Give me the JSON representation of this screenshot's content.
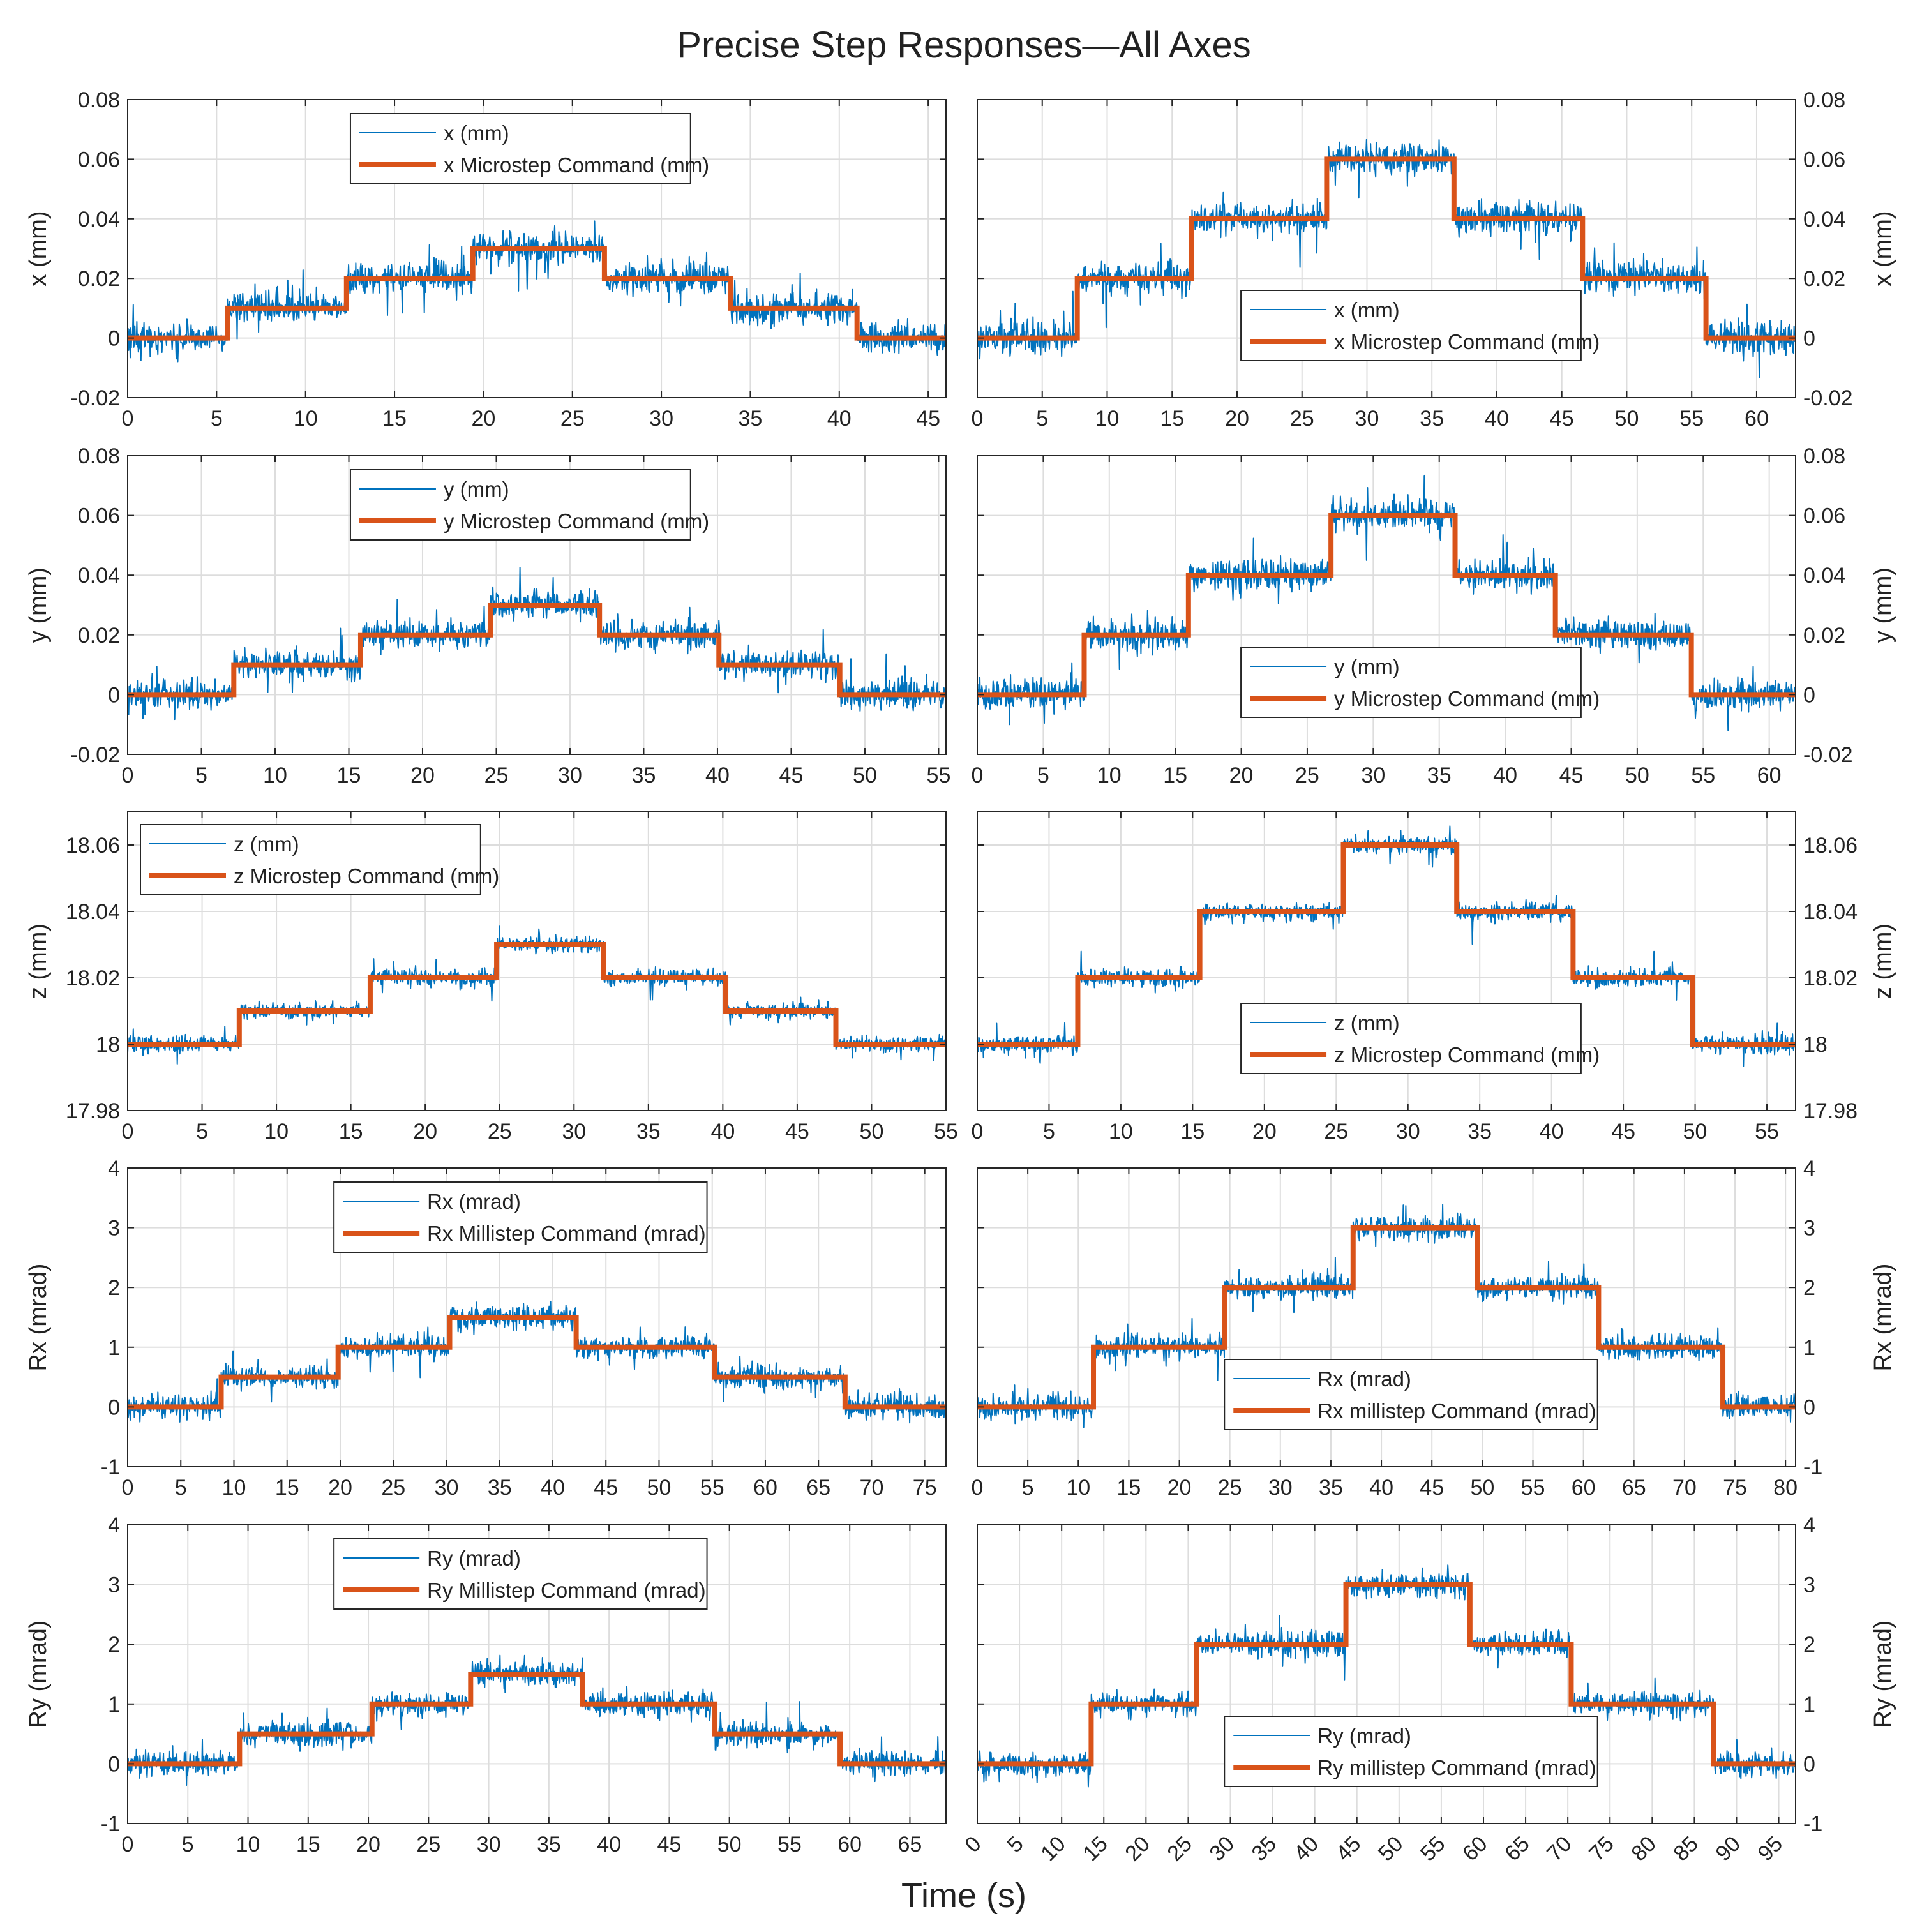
{
  "title": "Precise Step Responses—All Axes",
  "xlabel": "Time (s)",
  "colors": {
    "measured": "#0072BD",
    "command": "#D95319",
    "grid": "#DDDDDD",
    "axis": "#262626"
  },
  "chart_data": [
    {
      "id": "x-left",
      "type": "line",
      "row": 0,
      "col": 0,
      "ylabel": "x (mm)",
      "y_ticks": [
        "-0.02",
        "0",
        "0.02",
        "0.04",
        "0.06",
        "0.08"
      ],
      "ylim": [
        -0.02,
        0.08
      ],
      "xlim": [
        0,
        46
      ],
      "x_ticks": [
        0,
        5,
        10,
        15,
        20,
        25,
        30,
        35,
        40,
        45
      ],
      "grid": true,
      "legend": "top-center",
      "noise": 0.0045,
      "series": [
        {
          "name": "x (mm)",
          "style": "thin",
          "steps": [
            [
              0,
              0
            ],
            [
              5.6,
              0.01
            ],
            [
              12.3,
              0.02
            ],
            [
              19.4,
              0.03
            ],
            [
              26.8,
              0.02
            ],
            [
              33.9,
              0.01
            ],
            [
              41,
              0
            ]
          ],
          "end": 46
        },
        {
          "name": "x Microstep Command (mm)",
          "style": "thick",
          "steps": [
            [
              0,
              0
            ],
            [
              5.6,
              0.01
            ],
            [
              12.3,
              0.02
            ],
            [
              19.4,
              0.03
            ],
            [
              26.8,
              0.02
            ],
            [
              33.9,
              0.01
            ],
            [
              41,
              0
            ]
          ],
          "end": 46
        }
      ]
    },
    {
      "id": "x-right",
      "type": "line",
      "row": 0,
      "col": 1,
      "ylabel": "x (mm)",
      "y_ticks": [
        "-0.02",
        "0",
        "0.02",
        "0.04",
        "0.06",
        "0.08"
      ],
      "ylim": [
        -0.02,
        0.08
      ],
      "xlim": [
        0,
        63
      ],
      "x_ticks": [
        0,
        5,
        10,
        15,
        20,
        25,
        30,
        35,
        40,
        45,
        50,
        55,
        60
      ],
      "grid": true,
      "legend": "bottom-center",
      "noise": 0.005,
      "series": [
        {
          "name": "x (mm)",
          "style": "thin",
          "steps": [
            [
              0,
              0
            ],
            [
              7.7,
              0.02
            ],
            [
              16.5,
              0.04
            ],
            [
              26.9,
              0.06
            ],
            [
              36.7,
              0.04
            ],
            [
              46.6,
              0.02
            ],
            [
              56.1,
              0
            ]
          ],
          "end": 63
        },
        {
          "name": "x Microstep Command (mm)",
          "style": "thick",
          "steps": [
            [
              0,
              0
            ],
            [
              7.7,
              0.02
            ],
            [
              16.5,
              0.04
            ],
            [
              26.9,
              0.06
            ],
            [
              36.7,
              0.04
            ],
            [
              46.6,
              0.02
            ],
            [
              56.1,
              0
            ]
          ],
          "end": 63
        }
      ]
    },
    {
      "id": "y-left",
      "type": "line",
      "row": 1,
      "col": 0,
      "ylabel": "y (mm)",
      "y_ticks": [
        "-0.02",
        "0",
        "0.02",
        "0.04",
        "0.06",
        "0.08"
      ],
      "ylim": [
        -0.02,
        0.08
      ],
      "xlim": [
        0,
        55.5
      ],
      "x_ticks": [
        0,
        5,
        10,
        15,
        20,
        25,
        30,
        35,
        40,
        45,
        50,
        55
      ],
      "grid": true,
      "legend": "top-center",
      "noise": 0.0042,
      "series": [
        {
          "name": "y (mm)",
          "style": "thin",
          "steps": [
            [
              0,
              0
            ],
            [
              7.2,
              0.01
            ],
            [
              15.8,
              0.02
            ],
            [
              24.6,
              0.03
            ],
            [
              32,
              0.02
            ],
            [
              40.1,
              0.01
            ],
            [
              48.3,
              0
            ]
          ],
          "end": 55.5
        },
        {
          "name": "y Microstep Command (mm)",
          "style": "thick",
          "steps": [
            [
              0,
              0
            ],
            [
              7.2,
              0.01
            ],
            [
              15.8,
              0.02
            ],
            [
              24.6,
              0.03
            ],
            [
              32,
              0.02
            ],
            [
              40.1,
              0.01
            ],
            [
              48.3,
              0
            ]
          ],
          "end": 55.5
        }
      ]
    },
    {
      "id": "y-right",
      "type": "line",
      "row": 1,
      "col": 1,
      "ylabel": "y (mm)",
      "y_ticks": [
        "-0.02",
        "0",
        "0.02",
        "0.04",
        "0.06",
        "0.08"
      ],
      "ylim": [
        -0.02,
        0.08
      ],
      "xlim": [
        0,
        62
      ],
      "x_ticks": [
        0,
        5,
        10,
        15,
        20,
        25,
        30,
        35,
        40,
        45,
        50,
        55,
        60
      ],
      "grid": true,
      "legend": "bottom-center",
      "noise": 0.0045,
      "series": [
        {
          "name": "y (mm)",
          "style": "thin",
          "steps": [
            [
              0,
              0
            ],
            [
              8.1,
              0.02
            ],
            [
              16,
              0.04
            ],
            [
              26.8,
              0.06
            ],
            [
              36.2,
              0.04
            ],
            [
              43.8,
              0.02
            ],
            [
              54.1,
              0
            ]
          ],
          "end": 62
        },
        {
          "name": "y Microstep Command (mm)",
          "style": "thick",
          "steps": [
            [
              0,
              0
            ],
            [
              8.1,
              0.02
            ],
            [
              16,
              0.04
            ],
            [
              26.8,
              0.06
            ],
            [
              36.2,
              0.04
            ],
            [
              43.8,
              0.02
            ],
            [
              54.1,
              0
            ]
          ],
          "end": 62
        }
      ]
    },
    {
      "id": "z-left",
      "type": "line",
      "row": 2,
      "col": 0,
      "ylabel": "z (mm)",
      "y_ticks": [
        "17.98",
        "18",
        "18.02",
        "18.04",
        "18.06"
      ],
      "ylim": [
        17.98,
        18.07
      ],
      "xlim": [
        0,
        55
      ],
      "x_ticks": [
        0,
        5,
        10,
        15,
        20,
        25,
        30,
        35,
        40,
        45,
        50,
        55
      ],
      "grid": true,
      "legend": "top-left",
      "noise": 0.0022,
      "series": [
        {
          "name": "z (mm)",
          "style": "thin",
          "steps": [
            [
              0,
              18
            ],
            [
              7.5,
              18.01
            ],
            [
              16.3,
              18.02
            ],
            [
              24.8,
              18.03
            ],
            [
              32,
              18.02
            ],
            [
              40.2,
              18.01
            ],
            [
              47.6,
              18
            ]
          ],
          "end": 55
        },
        {
          "name": "z Microstep Command (mm)",
          "style": "thick",
          "steps": [
            [
              0,
              18
            ],
            [
              7.5,
              18.01
            ],
            [
              16.3,
              18.02
            ],
            [
              24.8,
              18.03
            ],
            [
              32,
              18.02
            ],
            [
              40.2,
              18.01
            ],
            [
              47.6,
              18
            ]
          ],
          "end": 55
        }
      ]
    },
    {
      "id": "z-right",
      "type": "line",
      "row": 2,
      "col": 1,
      "ylabel": "z (mm)",
      "y_ticks": [
        "17.98",
        "18",
        "18.02",
        "18.04",
        "18.06"
      ],
      "ylim": [
        17.98,
        18.07
      ],
      "xlim": [
        0,
        57
      ],
      "x_ticks": [
        0,
        5,
        10,
        15,
        20,
        25,
        30,
        35,
        40,
        45,
        50,
        55
      ],
      "grid": true,
      "legend": "bottom-center",
      "noise": 0.0025,
      "series": [
        {
          "name": "z (mm)",
          "style": "thin",
          "steps": [
            [
              0,
              18
            ],
            [
              7,
              18.02
            ],
            [
              15.5,
              18.04
            ],
            [
              25.5,
              18.06
            ],
            [
              33.4,
              18.04
            ],
            [
              41.5,
              18.02
            ],
            [
              49.8,
              18
            ]
          ],
          "end": 57
        },
        {
          "name": "z Microstep Command (mm)",
          "style": "thick",
          "steps": [
            [
              0,
              18
            ],
            [
              7,
              18.02
            ],
            [
              15.5,
              18.04
            ],
            [
              25.5,
              18.06
            ],
            [
              33.4,
              18.04
            ],
            [
              41.5,
              18.02
            ],
            [
              49.8,
              18
            ]
          ],
          "end": 57
        }
      ]
    },
    {
      "id": "rx-left",
      "type": "line",
      "row": 3,
      "col": 0,
      "ylabel": "Rx (mrad)",
      "y_ticks": [
        "-1",
        "0",
        "1",
        "2",
        "3",
        "4"
      ],
      "ylim": [
        -1,
        4
      ],
      "xlim": [
        0,
        77
      ],
      "x_ticks": [
        0,
        5,
        10,
        15,
        20,
        25,
        30,
        35,
        40,
        45,
        50,
        55,
        60,
        65,
        70,
        75
      ],
      "grid": true,
      "legend": "top-center",
      "noise": 0.18,
      "series": [
        {
          "name": "Rx (mrad)",
          "style": "thin",
          "steps": [
            [
              0,
              0
            ],
            [
              8.8,
              0.5
            ],
            [
              19.8,
              1
            ],
            [
              30.3,
              1.5
            ],
            [
              42.2,
              1
            ],
            [
              55.2,
              0.5
            ],
            [
              67.5,
              0
            ]
          ],
          "end": 77
        },
        {
          "name": "Rx Millistep Command (mrad)",
          "style": "thick",
          "steps": [
            [
              0,
              0
            ],
            [
              8.8,
              0.5
            ],
            [
              19.8,
              1
            ],
            [
              30.3,
              1.5
            ],
            [
              42.2,
              1
            ],
            [
              55.2,
              0.5
            ],
            [
              67.5,
              0
            ]
          ],
          "end": 77
        }
      ]
    },
    {
      "id": "rx-right",
      "type": "line",
      "row": 3,
      "col": 1,
      "ylabel": "Rx (mrad)",
      "y_ticks": [
        "-1",
        "0",
        "1",
        "2",
        "3",
        "4"
      ],
      "ylim": [
        -1,
        4
      ],
      "xlim": [
        0,
        81
      ],
      "x_ticks": [
        0,
        5,
        10,
        15,
        20,
        25,
        30,
        35,
        40,
        45,
        50,
        55,
        60,
        65,
        70,
        75,
        80
      ],
      "grid": true,
      "legend": "bottom-center",
      "noise": 0.18,
      "series": [
        {
          "name": "Rx (mrad)",
          "style": "thin",
          "steps": [
            [
              0,
              0
            ],
            [
              11.5,
              1
            ],
            [
              24.5,
              2
            ],
            [
              37.2,
              3
            ],
            [
              49.5,
              2
            ],
            [
              61.5,
              1
            ],
            [
              73.8,
              0
            ]
          ],
          "end": 81
        },
        {
          "name": "Rx millistep Command (mrad)",
          "style": "thick",
          "steps": [
            [
              0,
              0
            ],
            [
              11.5,
              1
            ],
            [
              24.5,
              2
            ],
            [
              37.2,
              3
            ],
            [
              49.5,
              2
            ],
            [
              61.5,
              1
            ],
            [
              73.8,
              0
            ]
          ],
          "end": 81
        }
      ]
    },
    {
      "id": "ry-left",
      "type": "line",
      "row": 4,
      "col": 0,
      "ylabel": "Ry (mrad)",
      "y_ticks": [
        "-1",
        "0",
        "1",
        "2",
        "3",
        "4"
      ],
      "ylim": [
        -1,
        4
      ],
      "xlim": [
        0,
        68
      ],
      "x_ticks": [
        0,
        5,
        10,
        15,
        20,
        25,
        30,
        35,
        40,
        45,
        50,
        55,
        60,
        65
      ],
      "grid": true,
      "legend": "top-center",
      "noise": 0.18,
      "series": [
        {
          "name": "Ry (mrad)",
          "style": "thin",
          "steps": [
            [
              0,
              0
            ],
            [
              9.3,
              0.5
            ],
            [
              20.3,
              1
            ],
            [
              28.5,
              1.5
            ],
            [
              37.8,
              1
            ],
            [
              48.8,
              0.5
            ],
            [
              59.2,
              0
            ]
          ],
          "end": 68
        },
        {
          "name": "Ry Millistep Command (mrad)",
          "style": "thick",
          "steps": [
            [
              0,
              0
            ],
            [
              9.3,
              0.5
            ],
            [
              20.3,
              1
            ],
            [
              28.5,
              1.5
            ],
            [
              37.8,
              1
            ],
            [
              48.8,
              0.5
            ],
            [
              59.2,
              0
            ]
          ],
          "end": 68
        }
      ]
    },
    {
      "id": "ry-right",
      "type": "line",
      "row": 4,
      "col": 1,
      "ylabel": "Ry (mrad)",
      "y_ticks": [
        "-1",
        "0",
        "1",
        "2",
        "3",
        "4"
      ],
      "ylim": [
        -1,
        4
      ],
      "xlim": [
        0,
        97
      ],
      "x_ticks": [
        0,
        5,
        10,
        15,
        20,
        25,
        30,
        35,
        40,
        45,
        50,
        55,
        60,
        65,
        70,
        75,
        80,
        85,
        90,
        95
      ],
      "x_tick_rotation": -45,
      "grid": true,
      "legend": "bottom-center",
      "noise": 0.18,
      "series": [
        {
          "name": "Ry (mrad)",
          "style": "thin",
          "steps": [
            [
              0,
              0
            ],
            [
              13.5,
              1
            ],
            [
              26,
              2
            ],
            [
              43.7,
              3
            ],
            [
              58.4,
              2
            ],
            [
              70.4,
              1
            ],
            [
              87.3,
              0
            ]
          ],
          "end": 97
        },
        {
          "name": "Ry millistep Command (mrad)",
          "style": "thick",
          "steps": [
            [
              0,
              0
            ],
            [
              13.5,
              1
            ],
            [
              26,
              2
            ],
            [
              43.7,
              3
            ],
            [
              58.4,
              2
            ],
            [
              70.4,
              1
            ],
            [
              87.3,
              0
            ]
          ],
          "end": 97
        }
      ]
    }
  ]
}
